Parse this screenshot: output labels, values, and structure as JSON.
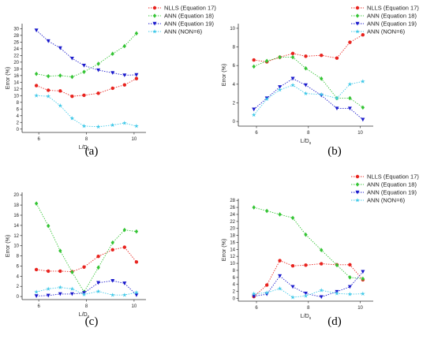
{
  "colors": {
    "NLLS (Equation 17)": "#e8231e",
    "ANN (Equation 18)": "#34c434",
    "ANN (Equation 19)": "#1a1acc",
    "ANN (NON=6)": "#3ec8e8"
  },
  "chart_data": [
    {
      "type": "line",
      "panel_label": "(a)",
      "xlabel": "L/D",
      "xlabel_sub": "s",
      "ylabel": "Error (%)",
      "xlim": [
        5.3,
        10.5
      ],
      "ylim": [
        -1,
        31.5
      ],
      "xticks": [
        6,
        8,
        10
      ],
      "yticks": [
        0,
        2,
        4,
        6,
        8,
        10,
        12,
        14,
        16,
        18,
        20,
        22,
        24,
        26,
        28,
        30
      ],
      "legend_position": "right",
      "series": [
        {
          "name": "NLLS (Equation 17)",
          "marker": "circle",
          "x": [
            5.9,
            6.4,
            6.9,
            7.4,
            7.9,
            8.5,
            9.1,
            9.6,
            10.1
          ],
          "y": [
            13.0,
            11.6,
            11.4,
            9.8,
            10.1,
            10.7,
            12.2,
            13.2,
            15.1
          ]
        },
        {
          "name": "ANN (Equation 18)",
          "marker": "diamond",
          "x": [
            5.9,
            6.4,
            6.9,
            7.4,
            7.9,
            8.5,
            9.1,
            9.6,
            10.1
          ],
          "y": [
            16.5,
            15.8,
            16.0,
            15.6,
            17.1,
            19.5,
            22.5,
            24.8,
            28.6
          ]
        },
        {
          "name": "ANN (Equation 19)",
          "marker": "triangle-down",
          "x": [
            5.9,
            6.4,
            6.9,
            7.4,
            7.9,
            8.5,
            9.1,
            9.6,
            10.1
          ],
          "y": [
            29.5,
            26.3,
            24.2,
            21.1,
            19.0,
            17.6,
            16.8,
            16.1,
            16.2
          ]
        },
        {
          "name": "ANN (NON=6)",
          "marker": "star",
          "x": [
            5.9,
            6.4,
            6.9,
            7.4,
            7.9,
            8.5,
            9.1,
            9.6,
            10.1
          ],
          "y": [
            10.0,
            9.8,
            7.0,
            3.2,
            0.9,
            0.7,
            1.2,
            1.8,
            0.9
          ]
        }
      ]
    },
    {
      "type": "line",
      "panel_label": "(b)",
      "xlabel": "L/D",
      "xlabel_sub": "s",
      "ylabel": "Error (%)",
      "xlim": [
        5.3,
        10.5
      ],
      "ylim": [
        -0.5,
        10.5
      ],
      "xticks": [
        6,
        8,
        10
      ],
      "yticks": [
        0,
        2,
        4,
        6,
        8,
        10
      ],
      "legend_position": "top-right",
      "series": [
        {
          "name": "NLLS (Equation 17)",
          "marker": "circle",
          "x": [
            5.9,
            6.4,
            6.9,
            7.4,
            7.9,
            8.5,
            9.1,
            9.6,
            10.1
          ],
          "y": [
            6.6,
            6.4,
            6.9,
            7.3,
            7.0,
            7.1,
            6.8,
            8.5,
            9.3
          ]
        },
        {
          "name": "ANN (Equation 18)",
          "marker": "diamond",
          "x": [
            5.9,
            6.4,
            6.9,
            7.4,
            7.9,
            8.5,
            9.1,
            9.6,
            10.1
          ],
          "y": [
            5.9,
            6.5,
            6.9,
            6.9,
            5.7,
            4.6,
            2.5,
            2.5,
            1.5
          ]
        },
        {
          "name": "ANN (Equation 19)",
          "marker": "triangle-down",
          "x": [
            5.9,
            6.4,
            6.9,
            7.4,
            7.9,
            8.5,
            9.1,
            9.6,
            10.1
          ],
          "y": [
            1.3,
            2.5,
            3.7,
            4.6,
            3.9,
            2.8,
            1.4,
            1.4,
            0.2
          ]
        },
        {
          "name": "ANN (NON=6)",
          "marker": "star",
          "x": [
            5.9,
            6.4,
            6.9,
            7.4,
            7.9,
            8.5,
            9.1,
            9.6,
            10.1
          ],
          "y": [
            0.7,
            2.4,
            3.4,
            3.9,
            3.0,
            2.9,
            2.5,
            4.0,
            4.3
          ]
        }
      ]
    },
    {
      "type": "line",
      "panel_label": "(c)",
      "xlabel": "L/D",
      "xlabel_sub": "s",
      "ylabel": "Error (%)",
      "xlim": [
        5.3,
        10.5
      ],
      "ylim": [
        -0.6,
        20.5
      ],
      "xticks": [
        6,
        8,
        10
      ],
      "yticks": [
        0,
        2,
        4,
        6,
        8,
        10,
        12,
        14,
        16,
        18,
        20
      ],
      "legend_position": "top-right",
      "series": [
        {
          "name": "NLLS (Equation 17)",
          "marker": "circle",
          "x": [
            5.9,
            6.4,
            6.9,
            7.4,
            7.9,
            8.5,
            9.1,
            9.6,
            10.1
          ],
          "y": [
            5.3,
            5.0,
            5.0,
            4.9,
            5.8,
            7.9,
            9.2,
            9.7,
            6.8
          ]
        },
        {
          "name": "ANN (Equation 18)",
          "marker": "diamond",
          "x": [
            5.9,
            6.4,
            6.9,
            7.4,
            7.9,
            8.5,
            9.1,
            9.6,
            10.1
          ],
          "y": [
            18.3,
            13.9,
            9.0,
            4.8,
            0.9,
            5.7,
            10.6,
            13.1,
            12.8
          ]
        },
        {
          "name": "ANN (Equation 19)",
          "marker": "triangle-down",
          "x": [
            5.9,
            6.4,
            6.9,
            7.4,
            7.9,
            8.5,
            9.1,
            9.6,
            10.1
          ],
          "y": [
            0.1,
            0.2,
            0.5,
            0.5,
            0.7,
            2.7,
            3.1,
            2.6,
            0.3
          ]
        },
        {
          "name": "ANN (NON=6)",
          "marker": "star",
          "x": [
            5.9,
            6.4,
            6.9,
            7.4,
            7.9,
            8.5,
            9.1,
            9.6,
            10.1
          ],
          "y": [
            0.9,
            1.5,
            1.8,
            1.5,
            0.4,
            1.0,
            0.3,
            0.3,
            0.8
          ]
        }
      ]
    },
    {
      "type": "line",
      "panel_label": "(d)",
      "xlabel": "L/D",
      "xlabel_sub": "s",
      "ylabel": "Error (%)",
      "xlim": [
        5.3,
        10.5
      ],
      "ylim": [
        -0.8,
        28.5
      ],
      "xticks": [
        6,
        8,
        10
      ],
      "yticks": [
        0,
        2,
        4,
        6,
        8,
        10,
        12,
        14,
        16,
        18,
        20,
        22,
        24,
        26,
        28
      ],
      "legend_position": "top-right",
      "series": [
        {
          "name": "NLLS (Equation 17)",
          "marker": "circle",
          "x": [
            5.9,
            6.4,
            6.9,
            7.4,
            7.9,
            8.5,
            9.1,
            9.6,
            10.1
          ],
          "y": [
            0.5,
            3.8,
            10.8,
            9.3,
            9.5,
            9.9,
            9.6,
            9.6,
            5.3
          ]
        },
        {
          "name": "ANN (Equation 18)",
          "marker": "diamond",
          "x": [
            5.9,
            6.4,
            6.9,
            7.4,
            7.9,
            8.5,
            9.1,
            9.6,
            10.1
          ],
          "y": [
            26.0,
            25.0,
            24.0,
            23.0,
            18.2,
            13.8,
            9.5,
            6.0,
            5.6
          ]
        },
        {
          "name": "ANN (Equation 19)",
          "marker": "triangle-down",
          "x": [
            5.9,
            6.4,
            6.9,
            7.4,
            7.9,
            8.5,
            9.1,
            9.6,
            10.1
          ],
          "y": [
            0.6,
            1.2,
            6.4,
            3.3,
            1.4,
            0.4,
            1.9,
            3.3,
            7.6
          ]
        },
        {
          "name": "ANN (NON=6)",
          "marker": "star",
          "x": [
            5.9,
            6.4,
            6.9,
            7.4,
            7.9,
            8.5,
            9.1,
            9.6,
            10.1
          ],
          "y": [
            1.3,
            1.6,
            2.8,
            0.3,
            0.7,
            2.3,
            1.4,
            1.2,
            1.3
          ]
        }
      ]
    }
  ]
}
